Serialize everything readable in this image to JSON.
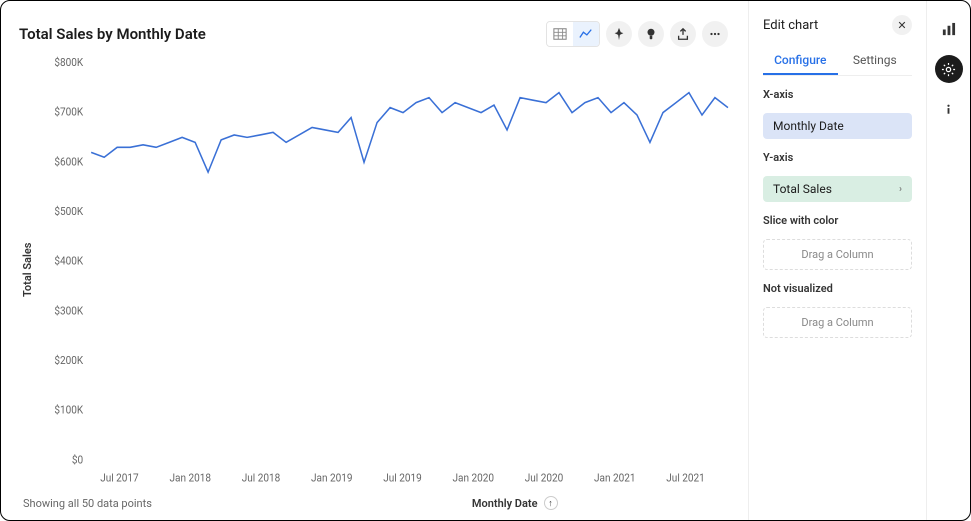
{
  "chart": {
    "title": "Total Sales by Monthly Date",
    "type": "line",
    "x_axis": {
      "label": "Monthly Date",
      "ticks": [
        "Jul 2017",
        "Jan 2018",
        "Jul 2018",
        "Jan 2019",
        "Jul 2019",
        "Jan 2020",
        "Jul 2020",
        "Jan 2021",
        "Jul 2021"
      ]
    },
    "y_axis": {
      "label": "Total Sales",
      "ticks": [
        "$0",
        "$100K",
        "$200K",
        "$300K",
        "$400K",
        "$500K",
        "$600K",
        "$700K",
        "$800K"
      ],
      "ylim": [
        0,
        800
      ],
      "ytick_step": 100
    },
    "series": {
      "color": "#3a70d6",
      "values": [
        620,
        610,
        630,
        630,
        635,
        630,
        640,
        650,
        640,
        580,
        645,
        655,
        650,
        655,
        660,
        640,
        655,
        670,
        665,
        660,
        690,
        600,
        680,
        710,
        700,
        720,
        730,
        700,
        720,
        710,
        700,
        715,
        665,
        730,
        725,
        720,
        740,
        700,
        720,
        730,
        700,
        720,
        695,
        640,
        700,
        720,
        740,
        695,
        730,
        710
      ]
    },
    "footer_status": "Showing all 50 data points",
    "background_color": "#ffffff"
  },
  "panel": {
    "title": "Edit chart",
    "tabs": {
      "configure": "Configure",
      "settings": "Settings",
      "active": "configure"
    },
    "x_axis_section": {
      "label": "X-axis",
      "pill": "Monthly Date"
    },
    "y_axis_section": {
      "label": "Y-axis",
      "pill": "Total Sales"
    },
    "slice_section": {
      "label": "Slice with color",
      "placeholder": "Drag a Column"
    },
    "not_visualized_section": {
      "label": "Not visualized",
      "placeholder": "Drag a Column"
    }
  }
}
